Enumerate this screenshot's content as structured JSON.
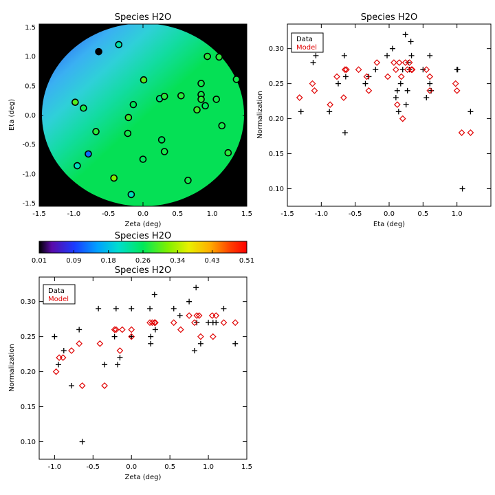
{
  "colors": {
    "data": "#000000",
    "model": "#e00000",
    "axis": "#000000"
  },
  "chart_data": [
    {
      "id": "map",
      "type": "heatmap",
      "title": "Species H2O",
      "xlabel": "Zeta (deg)",
      "ylabel": "Eta (deg)",
      "xlim": [
        -1.5,
        1.5
      ],
      "ylim": [
        -1.55,
        1.55
      ],
      "xticks": [
        -1.5,
        -1.0,
        -0.5,
        0.0,
        0.5,
        1.0,
        1.5
      ],
      "xticklabels": [
        "-1.5",
        "-1.0",
        "-0.5",
        "0.0",
        "0.5",
        "1.0",
        "1.5"
      ],
      "yticks": [
        -1.5,
        -1.0,
        -0.5,
        0.0,
        0.5,
        1.0,
        1.5
      ],
      "yticklabels": [
        "-1.5",
        "-1.0",
        "-0.5",
        "0.0",
        "0.5",
        "1.0",
        "1.5"
      ],
      "field_radius_deg": 1.5,
      "points": [
        {
          "x": 1.35,
          "y": 0.61,
          "v": 0.27
        },
        {
          "x": 0.93,
          "y": 1.0,
          "v": 0.28
        },
        {
          "x": 1.1,
          "y": 0.99,
          "v": 0.28
        },
        {
          "x": -0.64,
          "y": 1.08,
          "v": 0.01
        },
        {
          "x": -0.35,
          "y": 1.2,
          "v": 0.22
        },
        {
          "x": 0.01,
          "y": 0.6,
          "v": 0.3
        },
        {
          "x": 0.84,
          "y": 0.54,
          "v": 0.27
        },
        {
          "x": -0.98,
          "y": 0.22,
          "v": 0.3
        },
        {
          "x": -0.86,
          "y": 0.12,
          "v": 0.27
        },
        {
          "x": -0.14,
          "y": 0.18,
          "v": 0.26
        },
        {
          "x": 0.24,
          "y": 0.28,
          "v": 0.24
        },
        {
          "x": 0.31,
          "y": 0.32,
          "v": 0.28
        },
        {
          "x": 0.55,
          "y": 0.33,
          "v": 0.28
        },
        {
          "x": 0.84,
          "y": 0.35,
          "v": 0.27
        },
        {
          "x": 0.84,
          "y": 0.27,
          "v": 0.28
        },
        {
          "x": 0.9,
          "y": 0.16,
          "v": 0.26
        },
        {
          "x": 0.78,
          "y": 0.09,
          "v": 0.29
        },
        {
          "x": 1.06,
          "y": 0.27,
          "v": 0.27
        },
        {
          "x": -0.21,
          "y": -0.04,
          "v": 0.29
        },
        {
          "x": -0.22,
          "y": -0.31,
          "v": 0.27
        },
        {
          "x": -0.68,
          "y": -0.28,
          "v": 0.28
        },
        {
          "x": 1.14,
          "y": -0.18,
          "v": 0.27
        },
        {
          "x": 0.27,
          "y": -0.42,
          "v": 0.26
        },
        {
          "x": 0.31,
          "y": -0.62,
          "v": 0.27
        },
        {
          "x": 0.0,
          "y": -0.75,
          "v": 0.26
        },
        {
          "x": -0.79,
          "y": -0.66,
          "v": 0.12
        },
        {
          "x": -0.95,
          "y": -0.86,
          "v": 0.21
        },
        {
          "x": 1.23,
          "y": -0.64,
          "v": 0.28
        },
        {
          "x": -0.42,
          "y": -1.07,
          "v": 0.32
        },
        {
          "x": 0.65,
          "y": -1.11,
          "v": 0.27
        },
        {
          "x": -0.17,
          "y": -1.35,
          "v": 0.21
        }
      ]
    },
    {
      "id": "colorbar",
      "type": "heatmap",
      "title": "Species H2O",
      "range": [
        0.01,
        0.51
      ],
      "ticklabels": [
        "0.01",
        "0.09",
        "0.18",
        "0.26",
        "0.34",
        "0.43",
        "0.51"
      ]
    },
    {
      "id": "eta",
      "type": "scatter",
      "title": "Species H2O",
      "xlabel": "Eta (deg)",
      "ylabel": "Normalization",
      "xlim": [
        -1.5,
        1.5
      ],
      "ylim": [
        0.075,
        0.335
      ],
      "xticks": [
        -1.5,
        -1.0,
        -0.5,
        0.0,
        0.5,
        1.0
      ],
      "xticklabels": [
        "-1.5",
        "-1.0",
        "-0.5",
        "0.0",
        "0.5",
        "1.0"
      ],
      "yticks": [
        0.1,
        0.15,
        0.2,
        0.25,
        0.3
      ],
      "yticklabels": [
        "0.10",
        "0.15",
        "0.20",
        "0.25",
        "0.30"
      ],
      "legend": [
        "Data",
        "Model"
      ],
      "series": [
        {
          "name": "Data",
          "marker": "plus",
          "points": [
            [
              -1.3,
              0.21
            ],
            [
              -1.12,
              0.28
            ],
            [
              -1.08,
              0.29
            ],
            [
              -0.88,
              0.21
            ],
            [
              -0.75,
              0.25
            ],
            [
              -0.66,
              0.29
            ],
            [
              -0.64,
              0.26
            ],
            [
              -0.65,
              0.18
            ],
            [
              -0.35,
              0.25
            ],
            [
              -0.3,
              0.26
            ],
            [
              -0.2,
              0.27
            ],
            [
              -0.03,
              0.29
            ],
            [
              0.05,
              0.3
            ],
            [
              0.1,
              0.23
            ],
            [
              0.12,
              0.24
            ],
            [
              0.14,
              0.21
            ],
            [
              0.17,
              0.25
            ],
            [
              0.2,
              0.27
            ],
            [
              0.24,
              0.32
            ],
            [
              0.25,
              0.22
            ],
            [
              0.27,
              0.24
            ],
            [
              0.28,
              0.28
            ],
            [
              0.3,
              0.27
            ],
            [
              0.32,
              0.31
            ],
            [
              0.33,
              0.29
            ],
            [
              0.5,
              0.27
            ],
            [
              0.55,
              0.23
            ],
            [
              0.6,
              0.25
            ],
            [
              0.62,
              0.24
            ],
            [
              0.6,
              0.29
            ],
            [
              1.0,
              0.27
            ],
            [
              1.01,
              0.27
            ],
            [
              1.08,
              0.1
            ],
            [
              1.2,
              0.21
            ]
          ]
        },
        {
          "name": "Model",
          "marker": "diamond",
          "points": [
            [
              -1.32,
              0.23
            ],
            [
              -1.13,
              0.25
            ],
            [
              -1.1,
              0.24
            ],
            [
              -0.87,
              0.22
            ],
            [
              -0.77,
              0.26
            ],
            [
              -0.67,
              0.23
            ],
            [
              -0.65,
              0.27
            ],
            [
              -0.63,
              0.27
            ],
            [
              -0.45,
              0.27
            ],
            [
              -0.33,
              0.26
            ],
            [
              -0.3,
              0.24
            ],
            [
              -0.18,
              0.28
            ],
            [
              -0.02,
              0.26
            ],
            [
              0.07,
              0.28
            ],
            [
              0.1,
              0.27
            ],
            [
              0.12,
              0.22
            ],
            [
              0.15,
              0.28
            ],
            [
              0.18,
              0.26
            ],
            [
              0.2,
              0.2
            ],
            [
              0.24,
              0.28
            ],
            [
              0.27,
              0.27
            ],
            [
              0.3,
              0.28
            ],
            [
              0.33,
              0.27
            ],
            [
              0.34,
              0.27
            ],
            [
              0.55,
              0.27
            ],
            [
              0.6,
              0.24
            ],
            [
              0.6,
              0.26
            ],
            [
              0.98,
              0.25
            ],
            [
              1.0,
              0.24
            ],
            [
              1.07,
              0.18
            ],
            [
              1.2,
              0.18
            ]
          ]
        }
      ]
    },
    {
      "id": "zeta",
      "type": "scatter",
      "title": "Species H2O",
      "xlabel": "Zeta (deg)",
      "ylabel": "Normalization",
      "xlim": [
        -1.2,
        1.5
      ],
      "ylim": [
        0.075,
        0.335
      ],
      "xticks": [
        -1.0,
        -0.5,
        0.0,
        0.5,
        1.0,
        1.5
      ],
      "xticklabels": [
        "-1.0",
        "-0.5",
        "0.0",
        "0.5",
        "1.0",
        "1.5"
      ],
      "yticks": [
        0.1,
        0.15,
        0.2,
        0.25,
        0.3
      ],
      "yticklabels": [
        "0.10",
        "0.15",
        "0.20",
        "0.25",
        "0.30"
      ],
      "legend": [
        "Data",
        "Model"
      ],
      "series": [
        {
          "name": "Data",
          "marker": "plus",
          "points": [
            [
              -1.0,
              0.25
            ],
            [
              -0.95,
              0.21
            ],
            [
              -0.88,
              0.23
            ],
            [
              -0.78,
              0.18
            ],
            [
              -0.68,
              0.26
            ],
            [
              -0.64,
              0.1
            ],
            [
              -0.43,
              0.29
            ],
            [
              -0.35,
              0.21
            ],
            [
              -0.2,
              0.29
            ],
            [
              -0.22,
              0.25
            ],
            [
              -0.18,
              0.21
            ],
            [
              -0.15,
              0.22
            ],
            [
              0.0,
              0.29
            ],
            [
              0.0,
              0.25
            ],
            [
              0.24,
              0.29
            ],
            [
              0.25,
              0.24
            ],
            [
              0.25,
              0.25
            ],
            [
              0.3,
              0.31
            ],
            [
              0.31,
              0.26
            ],
            [
              0.55,
              0.29
            ],
            [
              0.63,
              0.28
            ],
            [
              0.75,
              0.3
            ],
            [
              0.82,
              0.23
            ],
            [
              0.84,
              0.32
            ],
            [
              0.85,
              0.27
            ],
            [
              0.9,
              0.24
            ],
            [
              1.0,
              0.27
            ],
            [
              1.06,
              0.27
            ],
            [
              1.1,
              0.27
            ],
            [
              1.2,
              0.29
            ],
            [
              1.35,
              0.24
            ]
          ]
        },
        {
          "name": "Model",
          "marker": "diamond",
          "points": [
            [
              -0.98,
              0.2
            ],
            [
              -0.94,
              0.22
            ],
            [
              -0.89,
              0.22
            ],
            [
              -0.78,
              0.23
            ],
            [
              -0.68,
              0.24
            ],
            [
              -0.64,
              0.18
            ],
            [
              -0.35,
              0.18
            ],
            [
              -0.41,
              0.24
            ],
            [
              -0.22,
              0.26
            ],
            [
              -0.2,
              0.26
            ],
            [
              -0.15,
              0.23
            ],
            [
              -0.12,
              0.26
            ],
            [
              0.0,
              0.25
            ],
            [
              0.0,
              0.26
            ],
            [
              0.24,
              0.27
            ],
            [
              0.27,
              0.27
            ],
            [
              0.3,
              0.27
            ],
            [
              0.31,
              0.27
            ],
            [
              0.55,
              0.27
            ],
            [
              0.64,
              0.26
            ],
            [
              0.75,
              0.28
            ],
            [
              0.82,
              0.27
            ],
            [
              0.85,
              0.28
            ],
            [
              0.88,
              0.28
            ],
            [
              0.9,
              0.25
            ],
            [
              1.05,
              0.28
            ],
            [
              1.06,
              0.25
            ],
            [
              1.1,
              0.28
            ],
            [
              1.2,
              0.27
            ],
            [
              1.35,
              0.27
            ]
          ]
        }
      ]
    }
  ]
}
